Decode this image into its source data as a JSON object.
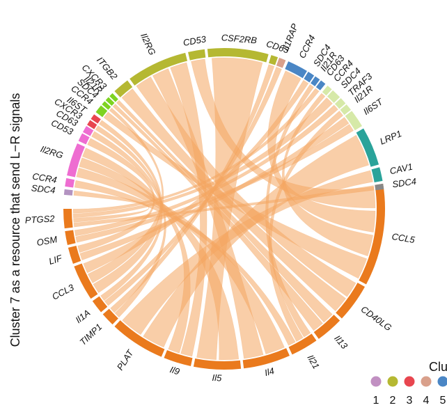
{
  "side_title": "Cluster 7 as a resource that send L−R signals",
  "legend": {
    "title": "Clu",
    "items": [
      {
        "label": "1",
        "color": "#c190c2",
        "label_color": "#111111"
      },
      {
        "label": "2",
        "color": "#b5b832",
        "label_color": "#c00000"
      },
      {
        "label": "3",
        "color": "#e8464f",
        "label_color": "#111111"
      },
      {
        "label": "4",
        "color": "#d9a08b",
        "label_color": "#111111"
      },
      {
        "label": "5",
        "color": "#4a86c5",
        "label_color": "#111111"
      }
    ]
  },
  "chord_color": "#f4a660",
  "segments": [
    {
      "name": "CCL5",
      "group": "sender",
      "color": "#ea7a1d",
      "start": 81,
      "end": 118
    },
    {
      "name": "CD40LG",
      "group": "sender",
      "color": "#ea7a1d",
      "start": 119,
      "end": 133
    },
    {
      "name": "Il13",
      "group": "sender",
      "color": "#ea7a1d",
      "start": 134,
      "end": 144
    },
    {
      "name": "Il21",
      "group": "sender",
      "color": "#ea7a1d",
      "start": 145,
      "end": 155
    },
    {
      "name": "Il4",
      "group": "sender",
      "color": "#ea7a1d",
      "start": 156,
      "end": 173
    },
    {
      "name": "Il5",
      "group": "sender",
      "color": "#ea7a1d",
      "start": 174,
      "end": 191
    },
    {
      "name": "Il9",
      "group": "sender",
      "color": "#ea7a1d",
      "start": 192,
      "end": 202
    },
    {
      "name": "PLAT",
      "group": "sender",
      "color": "#ea7a1d",
      "start": 203,
      "end": 223
    },
    {
      "name": "TIMP1",
      "group": "sender",
      "color": "#ea7a1d",
      "start": 224,
      "end": 229
    },
    {
      "name": "Il1A",
      "group": "sender",
      "color": "#ea7a1d",
      "start": 230,
      "end": 235
    },
    {
      "name": "CCL3",
      "group": "sender",
      "color": "#ea7a1d",
      "start": 236,
      "end": 249
    },
    {
      "name": "LIF",
      "group": "sender",
      "color": "#ea7a1d",
      "start": 250,
      "end": 256
    },
    {
      "name": "OSM",
      "group": "sender",
      "color": "#ea7a1d",
      "start": 257,
      "end": 262
    },
    {
      "name": "PTGS2",
      "group": "sender",
      "color": "#ea7a1d",
      "start": 263,
      "end": 270
    },
    {
      "name": "SDC4",
      "group": "receiver",
      "color": "#b393c1",
      "start": 275,
      "end": 277
    },
    {
      "name": "CCR4",
      "group": "receiver",
      "color": "#ee6dd1",
      "start": 278,
      "end": 281
    },
    {
      "name": "Il2RG",
      "group": "receiver",
      "color": "#ee6dd1",
      "start": 282,
      "end": 294
    },
    {
      "name": "CD53",
      "group": "receiver",
      "color": "#ee6dd1",
      "start": 295,
      "end": 298
    },
    {
      "name": "CD63",
      "group": "receiver",
      "color": "#ee6dd1",
      "start": 298.5,
      "end": 301
    },
    {
      "name": "CXCR3",
      "group": "receiver",
      "color": "#e8464f",
      "start": 301.5,
      "end": 303.5
    },
    {
      "name": "Il6ST",
      "group": "receiver",
      "color": "#e8464f",
      "start": 304,
      "end": 306
    },
    {
      "name": "CCR4",
      "group": "receiver",
      "color": "#7ed321",
      "start": 307,
      "end": 310
    },
    {
      "name": "SDC4",
      "group": "receiver",
      "color": "#7ed321",
      "start": 310.5,
      "end": 312
    },
    {
      "name": "Il21R",
      "group": "receiver",
      "color": "#7ed321",
      "start": 312.5,
      "end": 314
    },
    {
      "name": "CXCR3",
      "group": "receiver",
      "color": "#7ed321",
      "start": 314.5,
      "end": 316
    },
    {
      "name": "ITGB2",
      "group": "receiver",
      "color": "#b5b832",
      "start": 317,
      "end": 323
    },
    {
      "name": "Il2RG",
      "group": "receiver",
      "color": "#b5b832",
      "start": 324,
      "end": 346
    },
    {
      "name": "CD53",
      "group": "receiver",
      "color": "#b5b832",
      "start": 347,
      "end": 353
    },
    {
      "name": "CSF2RB",
      "group": "receiver",
      "color": "#b5b832",
      "start": 354,
      "end": 376
    },
    {
      "name": "CD63",
      "group": "receiver",
      "color": "#b5b832",
      "start": 377,
      "end": 379.5
    },
    {
      "name": "Il1RAP",
      "group": "receiver",
      "color": "#d9a08b",
      "start": 380,
      "end": 382.5
    },
    {
      "name": "CCR4",
      "group": "receiver",
      "color": "#4a86c5",
      "start": 383.5,
      "end": 391
    },
    {
      "name": "SDC4",
      "group": "receiver",
      "color": "#4a86c5",
      "start": 391.5,
      "end": 394
    },
    {
      "name": "Il21R",
      "group": "receiver",
      "color": "#4a86c5",
      "start": 394.5,
      "end": 396.5
    },
    {
      "name": "CD63",
      "group": "receiver",
      "color": "#4a86c5",
      "start": 397,
      "end": 399
    },
    {
      "name": "CCR4",
      "group": "receiver",
      "color": "#d6e9a8",
      "start": 400,
      "end": 402
    },
    {
      "name": "SDC4",
      "group": "receiver",
      "color": "#d6e9a8",
      "start": 402.5,
      "end": 406
    },
    {
      "name": "TRAF3",
      "group": "receiver",
      "color": "#d6e9a8",
      "start": 406.5,
      "end": 409
    },
    {
      "name": "Il21R",
      "group": "receiver",
      "color": "#d6e9a8",
      "start": 409.5,
      "end": 412
    },
    {
      "name": "Il6ST",
      "group": "receiver",
      "color": "#d6e9a8",
      "start": 412.5,
      "end": 419
    },
    {
      "name": "LRP1",
      "group": "receiver",
      "color": "#2aa39a",
      "start": 420,
      "end": 434
    },
    {
      "name": "CAV1",
      "group": "receiver",
      "color": "#2aa39a",
      "start": 435,
      "end": 440
    },
    {
      "name": "SDC4",
      "group": "receiver",
      "color": "#888888",
      "start": 441,
      "end": 443
    }
  ],
  "links": [
    {
      "from": 0,
      "to": 27
    },
    {
      "from": 0,
      "to": 31
    },
    {
      "from": 0,
      "to": 35
    },
    {
      "from": 0,
      "to": 21
    },
    {
      "from": 1,
      "to": 26
    },
    {
      "from": 1,
      "to": 25
    },
    {
      "from": 2,
      "to": 24
    },
    {
      "from": 2,
      "to": 23
    },
    {
      "from": 3,
      "to": 33
    },
    {
      "from": 3,
      "to": 38
    },
    {
      "from": 3,
      "to": 15
    },
    {
      "from": 4,
      "to": 16
    },
    {
      "from": 4,
      "to": 26
    },
    {
      "from": 5,
      "to": 16
    },
    {
      "from": 5,
      "to": 28
    },
    {
      "from": 6,
      "to": 26
    },
    {
      "from": 6,
      "to": 16
    },
    {
      "from": 7,
      "to": 40
    },
    {
      "from": 7,
      "to": 41
    },
    {
      "from": 8,
      "to": 18
    },
    {
      "from": 8,
      "to": 29
    },
    {
      "from": 9,
      "to": 30
    },
    {
      "from": 9,
      "to": 19
    },
    {
      "from": 10,
      "to": 20
    },
    {
      "from": 10,
      "to": 22
    },
    {
      "from": 10,
      "to": 32
    },
    {
      "from": 11,
      "to": 39
    },
    {
      "from": 11,
      "to": 17
    },
    {
      "from": 12,
      "to": 39
    },
    {
      "from": 12,
      "to": 37
    },
    {
      "from": 13,
      "to": 42
    },
    {
      "from": 13,
      "to": 14
    },
    {
      "from": 13,
      "to": 36
    },
    {
      "from": 13,
      "to": 34
    }
  ]
}
